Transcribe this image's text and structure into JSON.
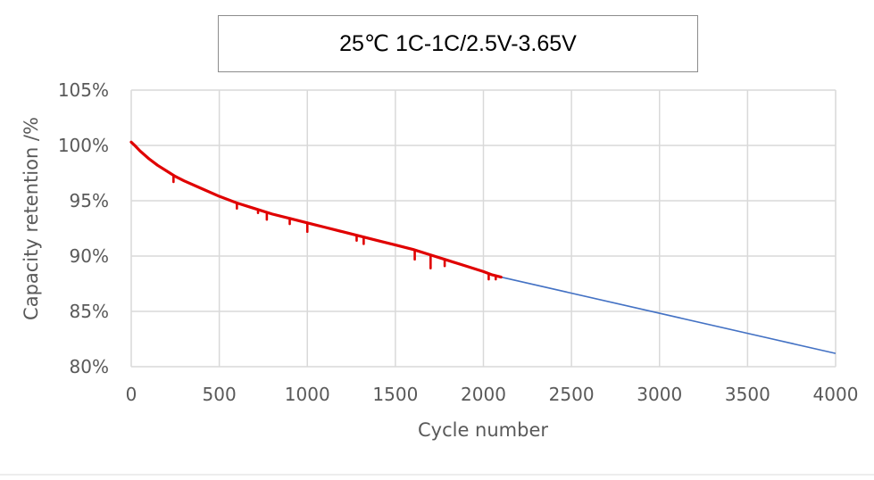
{
  "chart_data": {
    "type": "line",
    "title": "25℃ 1C-1C/2.5V-3.65V",
    "xlabel": "Cycle number",
    "ylabel": "Capacity retention /%",
    "xlim": [
      0,
      4000
    ],
    "ylim": [
      80,
      105
    ],
    "x_ticks": [
      0,
      500,
      1000,
      1500,
      2000,
      2500,
      3000,
      3500,
      4000
    ],
    "y_ticks": [
      80,
      85,
      90,
      95,
      100,
      105
    ],
    "y_tick_labels": [
      "80%",
      "85%",
      "90%",
      "95%",
      "100%",
      "105%"
    ],
    "grid": true,
    "legend": "none",
    "colors": {
      "measured": "#e00000",
      "extrapolated": "#4472c4",
      "grid": "#d9d9d9",
      "tick_text": "#595959"
    },
    "series": [
      {
        "x": [
          0,
          20,
          50,
          100,
          150,
          200,
          250,
          300,
          400,
          500,
          600,
          700,
          800,
          900,
          1000,
          1100,
          1200,
          1300,
          1400,
          1500,
          1600,
          1700,
          1800,
          1900,
          2000,
          2050,
          2100
        ],
        "y": [
          100.3,
          100.0,
          99.5,
          98.8,
          98.2,
          97.7,
          97.2,
          96.8,
          96.1,
          95.4,
          94.8,
          94.3,
          93.8,
          93.4,
          93.0,
          92.6,
          92.2,
          91.8,
          91.4,
          91.0,
          90.6,
          90.1,
          89.6,
          89.1,
          88.6,
          88.3,
          88.1
        ],
        "dips": [
          {
            "x": 240,
            "y": 96.7
          },
          {
            "x": 600,
            "y": 94.3
          },
          {
            "x": 720,
            "y": 93.9
          },
          {
            "x": 770,
            "y": 93.3
          },
          {
            "x": 900,
            "y": 92.9
          },
          {
            "x": 1000,
            "y": 92.2
          },
          {
            "x": 1280,
            "y": 91.4
          },
          {
            "x": 1320,
            "y": 91.1
          },
          {
            "x": 1610,
            "y": 89.7
          },
          {
            "x": 1700,
            "y": 88.9
          },
          {
            "x": 1780,
            "y": 89.1
          },
          {
            "x": 2030,
            "y": 87.9
          },
          {
            "x": 2070,
            "y": 87.9
          }
        ]
      },
      {
        "x": [
          2100,
          4000
        ],
        "y": [
          88.1,
          81.2
        ]
      }
    ]
  }
}
